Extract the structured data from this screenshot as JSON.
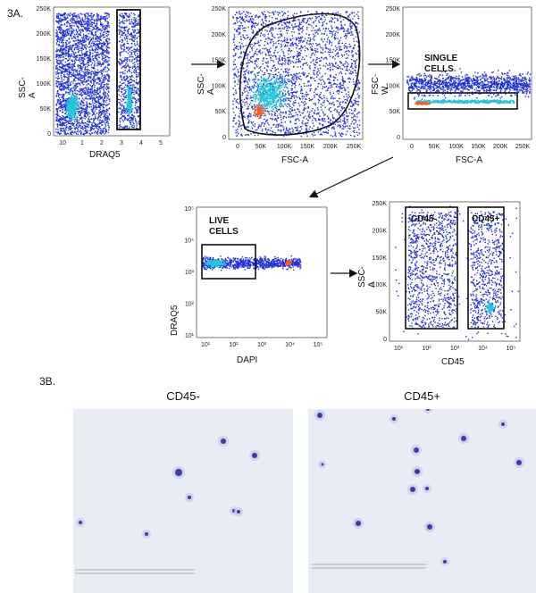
{
  "panel_a_label": "3A.",
  "panel_b_label": "3B.",
  "plots": [
    {
      "id": "p1",
      "xlabel": "DRAQ5",
      "ylabel": "SSC-A",
      "y_ticks": [
        "250K",
        "200K",
        "150K",
        "100K",
        "50K",
        "0"
      ],
      "x_ticks": [
        "10",
        "1",
        "2",
        "3",
        "4",
        "5"
      ],
      "gate_label": ""
    },
    {
      "id": "p2",
      "xlabel": "FSC-A",
      "ylabel": "SSC-A",
      "y_ticks": [
        "250K",
        "200K",
        "150K",
        "100K",
        "50K",
        "0"
      ],
      "x_ticks": [
        "0",
        "50K",
        "100K",
        "150K",
        "200K",
        "250K"
      ],
      "gate_label": ""
    },
    {
      "id": "p3",
      "xlabel": "FSC-A",
      "ylabel": "FSC-W",
      "y_ticks": [
        "250K",
        "200K",
        "150K",
        "100K",
        "50K",
        "0"
      ],
      "x_ticks": [
        "0",
        "50K",
        "100K",
        "150K",
        "200K",
        "250K"
      ],
      "gate_label": "SINGLE CELLS"
    },
    {
      "id": "p4",
      "xlabel": "DAPI",
      "ylabel": "DRAQ5",
      "y_ticks": [
        "10⁵",
        "10⁴",
        "10³",
        "10²",
        "10¹"
      ],
      "x_ticks": [
        "10¹",
        "10²",
        "10³",
        "10⁴",
        "10⁵"
      ],
      "gate_label": "LIVE CELLS"
    },
    {
      "id": "p5",
      "xlabel": "CD45",
      "ylabel": "SSC-A",
      "y_ticks": [
        "250K",
        "200K",
        "150K",
        "100K",
        "50K",
        "0"
      ],
      "x_ticks": [
        "10¹",
        "10²",
        "10³",
        "10⁴",
        "10⁵"
      ],
      "gate_labels": [
        "CD45-",
        "CD45+"
      ]
    }
  ],
  "micrographs": [
    {
      "title": "CD45-"
    },
    {
      "title": "CD45+"
    }
  ],
  "colors": {
    "density_low": "#1f2fe0",
    "density_mid": "#22c7d8",
    "density_high": "#ff5a1a",
    "gate": "#111111",
    "cell": "#3a3fa8"
  }
}
